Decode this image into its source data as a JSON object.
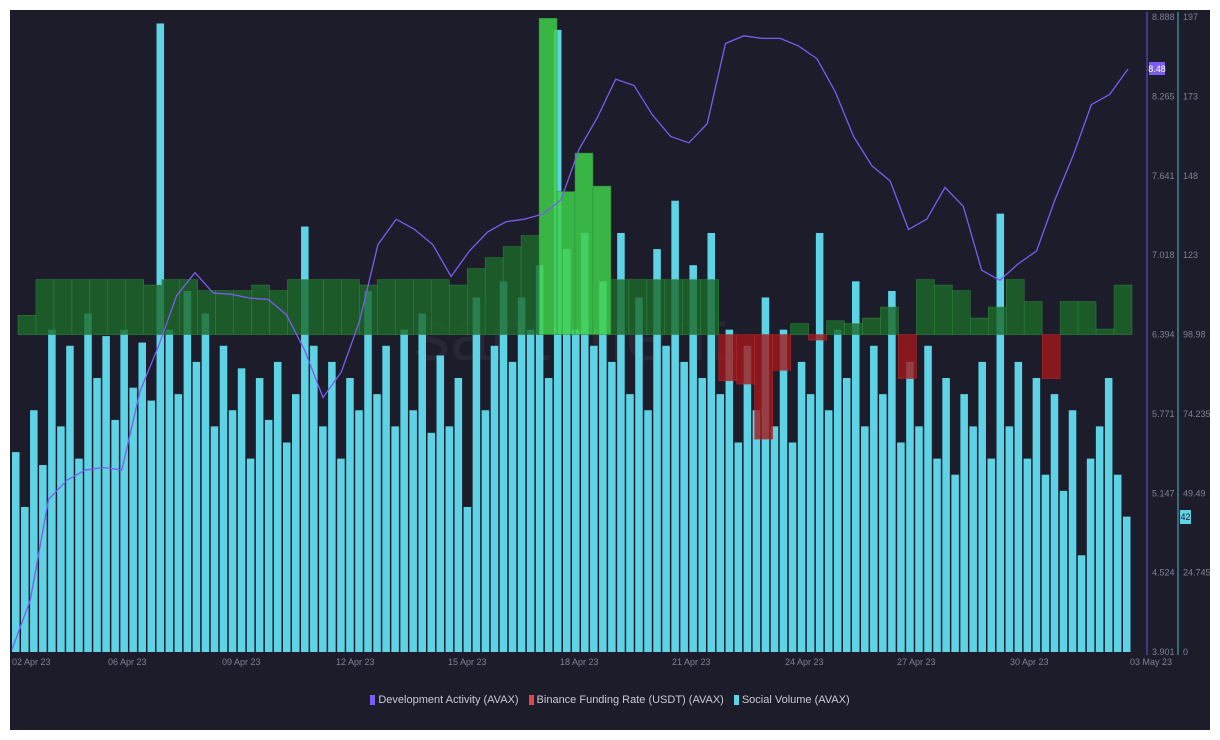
{
  "chart_data": {
    "type": "bar+line",
    "watermark": "santiment.",
    "x_tick_labels": [
      "02 Apr 23",
      "06 Apr 23",
      "09 Apr 23",
      "12 Apr 23",
      "15 Apr 23",
      "18 Apr 23",
      "21 Apr 23",
      "24 Apr 23",
      "27 Apr 23",
      "30 Apr 23",
      "03 May 23"
    ],
    "left_axis": {
      "ticks": [
        "8.888",
        "8.265",
        "7.641",
        "7.018",
        "6.394",
        "5.771",
        "5.147",
        "4.524",
        "3.901"
      ],
      "ylim": [
        3.901,
        8.888
      ],
      "current_value_label": "8.48",
      "color": "#7b5cf0"
    },
    "right_axis": {
      "ticks": [
        "197",
        "173",
        "148",
        "123",
        "98.98",
        "74.235",
        "49.49",
        "24.745",
        "0"
      ],
      "ylim": [
        0,
        197
      ],
      "current_value_label": "42",
      "color": "#5fd3e6"
    },
    "grid": false,
    "legend_position": "bottom",
    "series": [
      {
        "name": "Development Activity (AVAX)",
        "type": "line",
        "axis": "left",
        "color": "#7b5cf0",
        "values": [
          3.92,
          4.31,
          5.1,
          5.25,
          5.33,
          5.35,
          5.33,
          5.95,
          6.3,
          6.7,
          6.88,
          6.72,
          6.71,
          6.68,
          6.67,
          6.55,
          6.27,
          5.9,
          6.1,
          6.5,
          7.1,
          7.3,
          7.22,
          7.1,
          6.85,
          7.05,
          7.2,
          7.28,
          7.3,
          7.34,
          7.45,
          7.85,
          8.1,
          8.4,
          8.35,
          8.12,
          7.95,
          7.9,
          8.05,
          8.68,
          8.74,
          8.72,
          8.72,
          8.66,
          8.56,
          8.3,
          7.95,
          7.72,
          7.6,
          7.22,
          7.3,
          7.55,
          7.4,
          6.9,
          6.82,
          6.95,
          7.05,
          7.45,
          7.8,
          8.2,
          8.28,
          8.48
        ]
      },
      {
        "name": "Binance Funding Rate (USDT) (AVAX)",
        "type": "bar",
        "color": "#e0474c",
        "positive_color": "#2fa23c",
        "values": [
          0.0035,
          0.01,
          0.01,
          0.01,
          0.01,
          0.01,
          0.01,
          0.009,
          0.01,
          0.01,
          0.008,
          0.008,
          0.008,
          0.009,
          0.008,
          0.01,
          0.01,
          0.01,
          0.01,
          0.009,
          0.01,
          0.01,
          0.01,
          0.01,
          0.009,
          0.012,
          0.014,
          0.016,
          0.018,
          0.0575,
          0.026,
          0.033,
          0.027,
          0.01,
          0.01,
          0.01,
          0.01,
          0.01,
          0.01,
          -0.0084,
          -0.009,
          -0.019,
          -0.0065,
          0.002,
          -0.001,
          0.0025,
          0.002,
          0.003,
          0.005,
          -0.008,
          0.01,
          0.009,
          0.008,
          0.003,
          0.005,
          0.01,
          0.006,
          -0.008,
          0.006,
          0.006,
          0.001,
          0.009
        ]
      },
      {
        "name": "Social Volume (AVAX)",
        "type": "bar",
        "axis": "right",
        "color": "#5fd3e6",
        "values": [
          62,
          45,
          75,
          58,
          100,
          70,
          95,
          60,
          105,
          85,
          98,
          72,
          100,
          82,
          96,
          78,
          195,
          100,
          80,
          112,
          90,
          105,
          70,
          95,
          75,
          88,
          60,
          85,
          72,
          90,
          65,
          80,
          132,
          95,
          70,
          90,
          60,
          85,
          75,
          112,
          80,
          95,
          70,
          100,
          75,
          105,
          68,
          92,
          70,
          85,
          45,
          110,
          75,
          95,
          115,
          90,
          110,
          100,
          120,
          85,
          193,
          125,
          100,
          130,
          95,
          115,
          90,
          130,
          80,
          110,
          75,
          125,
          95,
          140,
          90,
          120,
          85,
          130,
          80,
          100,
          65,
          95,
          75,
          110,
          70,
          100,
          65,
          90,
          80,
          130,
          75,
          100,
          85,
          115,
          70,
          95,
          80,
          112,
          65,
          90,
          70,
          95,
          60,
          85,
          55,
          80,
          70,
          90,
          60,
          136,
          70,
          90,
          60,
          85,
          55,
          80,
          50,
          75,
          30,
          60,
          70,
          85,
          55,
          42
        ]
      }
    ]
  }
}
